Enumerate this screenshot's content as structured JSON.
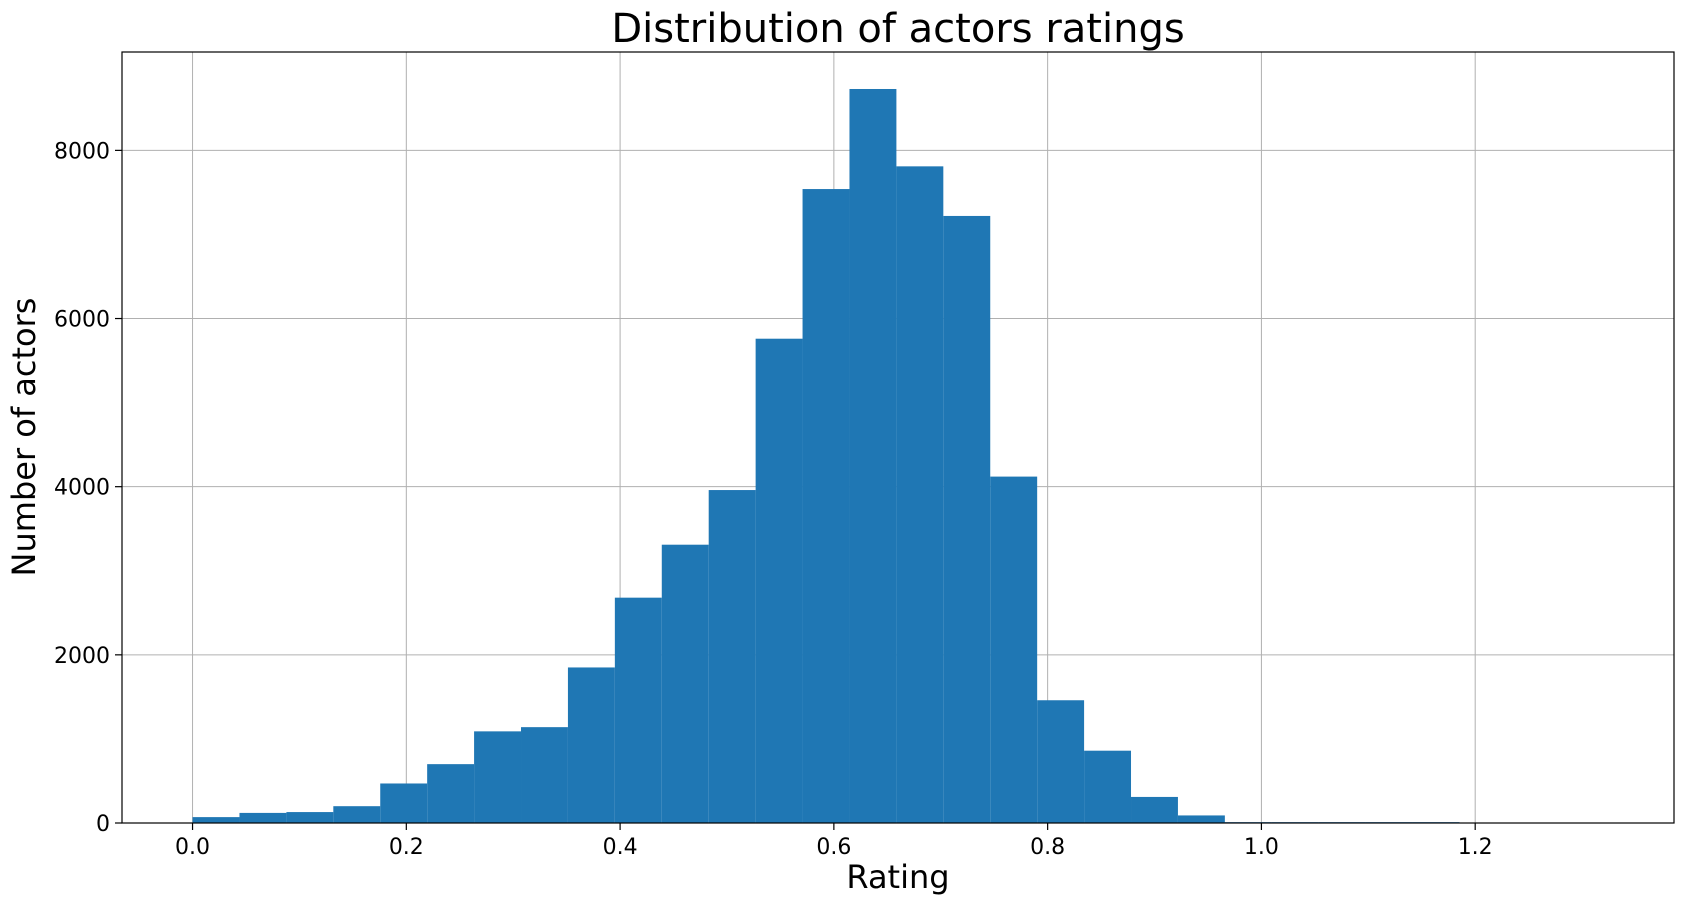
{
  "chart_data": {
    "type": "bar",
    "title": "Distribution of actors ratings",
    "xlabel": "Rating",
    "ylabel": "Number of actors",
    "bar_color": "#1f77b4",
    "grid": true,
    "xlim": [
      -0.066,
      1.386
    ],
    "ylim": [
      0,
      9170
    ],
    "x_ticks": [
      0.0,
      0.2,
      0.4,
      0.6,
      0.8,
      1.0,
      1.2
    ],
    "x_tick_labels": [
      "0.0",
      "0.2",
      "0.4",
      "0.6",
      "0.8",
      "1.0",
      "1.2"
    ],
    "y_ticks": [
      0,
      2000,
      4000,
      6000,
      8000
    ],
    "y_tick_labels": [
      "0",
      "2000",
      "4000",
      "6000",
      "8000"
    ],
    "bin_start": 0.0,
    "bin_width": 0.0439,
    "values": [
      70,
      120,
      130,
      200,
      470,
      700,
      1090,
      1140,
      1850,
      2680,
      3310,
      3960,
      5760,
      7540,
      8730,
      7810,
      7220,
      4120,
      1460,
      860,
      310,
      90,
      10,
      10,
      10,
      10,
      10,
      0,
      0,
      0
    ]
  }
}
